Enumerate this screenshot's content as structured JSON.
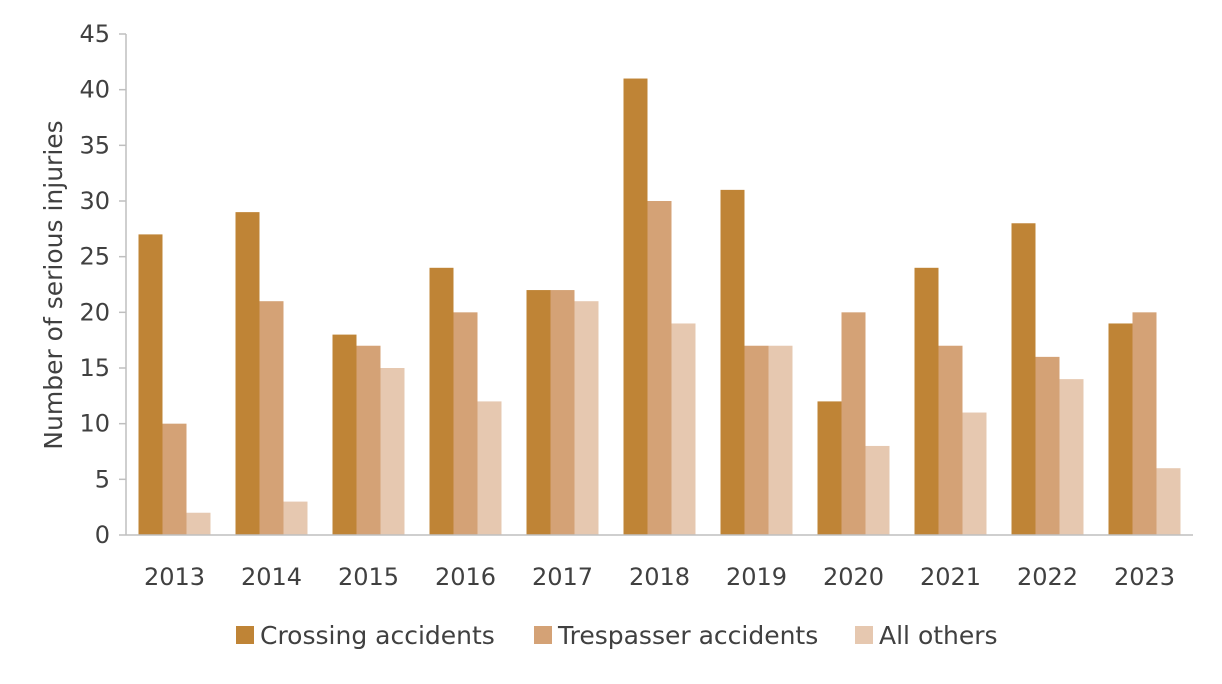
{
  "chart_data": {
    "type": "bar",
    "title": "",
    "xlabel": "",
    "ylabel": "Number of serious injuries",
    "ylim": [
      0,
      45
    ],
    "yticks": [
      0,
      5,
      10,
      15,
      20,
      25,
      30,
      35,
      40,
      45
    ],
    "grid": false,
    "legend_position": "bottom",
    "categories": [
      "2013",
      "2014",
      "2015",
      "2016",
      "2017",
      "2018",
      "2019",
      "2020",
      "2021",
      "2022",
      "2023"
    ],
    "series": [
      {
        "name": "Crossing accidents",
        "color": "#BF8436",
        "values": [
          27,
          29,
          18,
          24,
          22,
          41,
          31,
          12,
          24,
          28,
          19
        ]
      },
      {
        "name": "Trespasser accidents",
        "color": "#D4A276",
        "values": [
          10,
          21,
          17,
          20,
          22,
          30,
          17,
          20,
          17,
          16,
          20
        ]
      },
      {
        "name": "All others",
        "color": "#E6C8B0",
        "values": [
          2,
          3,
          15,
          12,
          21,
          19,
          17,
          8,
          11,
          14,
          6
        ]
      }
    ]
  }
}
